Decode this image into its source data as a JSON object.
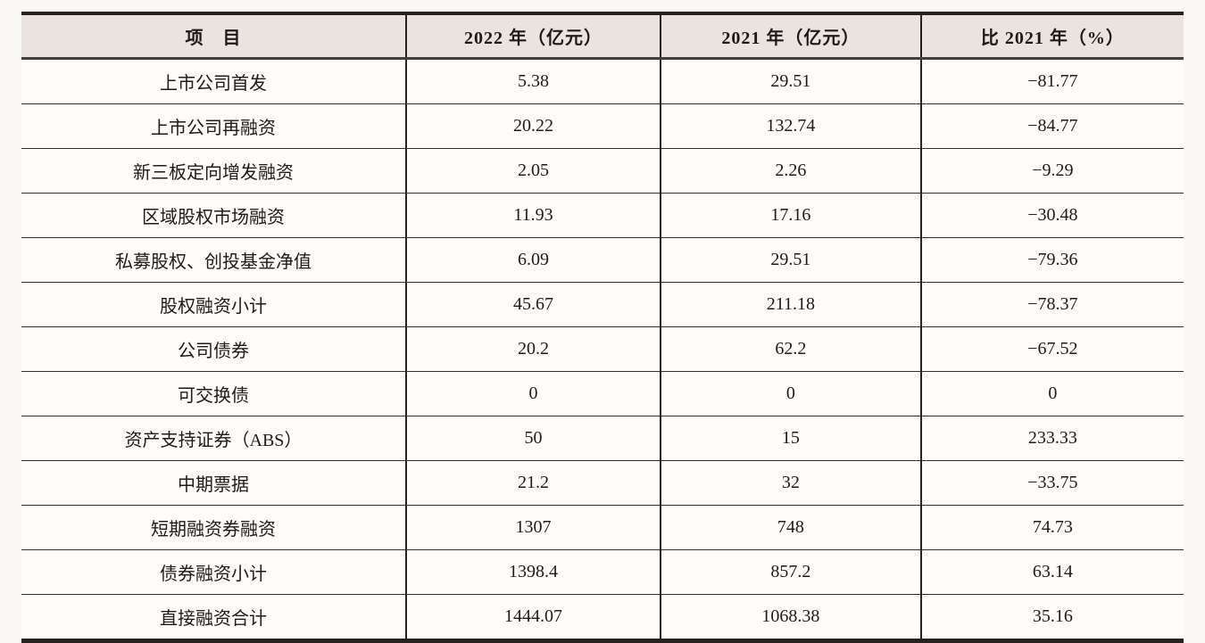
{
  "table": {
    "columns": [
      "项　目",
      "2022 年（亿元）",
      "2021 年（亿元）",
      "比 2021 年（%）"
    ],
    "rows": [
      {
        "item": "上市公司首发",
        "y2022": "5.38",
        "y2021": "29.51",
        "vs2021": "−81.77"
      },
      {
        "item": "上市公司再融资",
        "y2022": "20.22",
        "y2021": "132.74",
        "vs2021": "−84.77"
      },
      {
        "item": "新三板定向增发融资",
        "y2022": "2.05",
        "y2021": "2.26",
        "vs2021": "−9.29"
      },
      {
        "item": "区域股权市场融资",
        "y2022": "11.93",
        "y2021": "17.16",
        "vs2021": "−30.48"
      },
      {
        "item": "私募股权、创投基金净值",
        "y2022": "6.09",
        "y2021": "29.51",
        "vs2021": "−79.36"
      },
      {
        "item": "股权融资小计",
        "y2022": "45.67",
        "y2021": "211.18",
        "vs2021": "−78.37"
      },
      {
        "item": "公司债券",
        "y2022": "20.2",
        "y2021": "62.2",
        "vs2021": "−67.52"
      },
      {
        "item": "可交换债",
        "y2022": "0",
        "y2021": "0",
        "vs2021": "0"
      },
      {
        "item": "资产支持证券（ABS）",
        "y2022": "50",
        "y2021": "15",
        "vs2021": "233.33"
      },
      {
        "item": "中期票据",
        "y2022": "21.2",
        "y2021": "32",
        "vs2021": "−33.75"
      },
      {
        "item": "短期融资券融资",
        "y2022": "1307",
        "y2021": "748",
        "vs2021": "74.73"
      },
      {
        "item": "债券融资小计",
        "y2022": "1398.4",
        "y2021": "857.2",
        "vs2021": "63.14"
      },
      {
        "item": "直接融资合计",
        "y2022": "1444.07",
        "y2021": "1068.38",
        "vs2021": "35.16"
      }
    ],
    "colors": {
      "header_bg": "#eae3e0",
      "border": "#27211f",
      "page_bg": "#fbf9f7"
    }
  }
}
